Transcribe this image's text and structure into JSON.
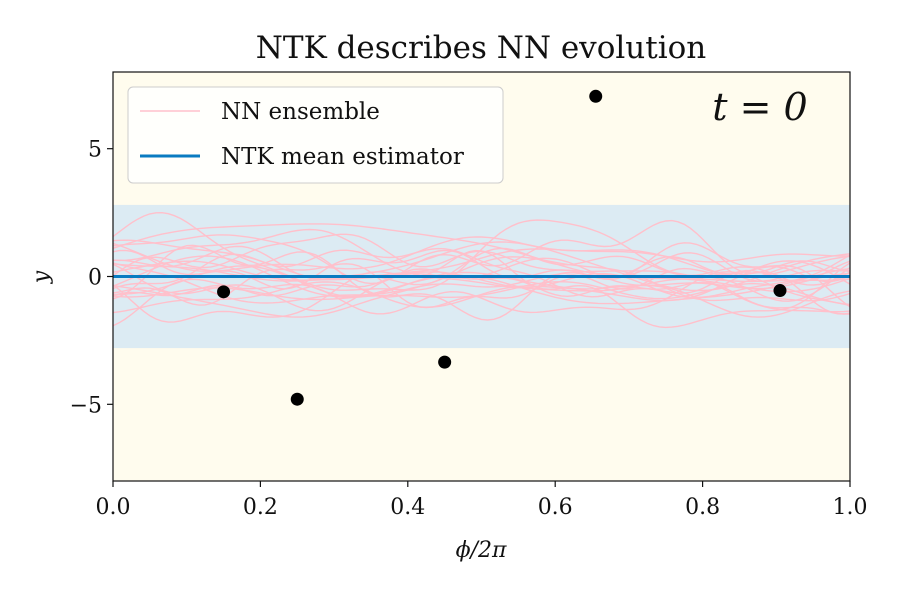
{
  "chart_data": {
    "type": "line",
    "title": "NTK describes NN evolution",
    "xlabel": "ϕ/2π",
    "ylabel": "y",
    "xlim": [
      0.0,
      1.0
    ],
    "ylim": [
      -8.0,
      8.0
    ],
    "x_ticks": [
      0.0,
      0.2,
      0.4,
      0.6,
      0.8,
      1.0
    ],
    "x_tick_labels": [
      "0.0",
      "0.2",
      "0.4",
      "0.6",
      "0.8",
      "1.0"
    ],
    "y_ticks": [
      -5,
      0,
      5
    ],
    "y_tick_labels": [
      "−5",
      "0",
      "5"
    ],
    "grid": false,
    "legend_position": "top-left",
    "annotation": "t = 0",
    "background_color": "#fffcee",
    "band": {
      "lower": -2.8,
      "upper": 2.8,
      "color": "#dcebf3"
    },
    "series": [
      {
        "name": "NN ensemble",
        "kind": "ensemble",
        "color": "#ffc0cb",
        "num_members": 24
      },
      {
        "name": "NTK mean estimator",
        "kind": "line",
        "color": "#0a7bc1",
        "x": [
          0.0,
          1.0
        ],
        "y": [
          0.0,
          0.0
        ]
      }
    ],
    "points": {
      "color": "#000000",
      "x": [
        0.15,
        0.25,
        0.45,
        0.655,
        0.905
      ],
      "y": [
        -0.6,
        -4.8,
        -3.35,
        7.05,
        -0.55
      ]
    }
  }
}
